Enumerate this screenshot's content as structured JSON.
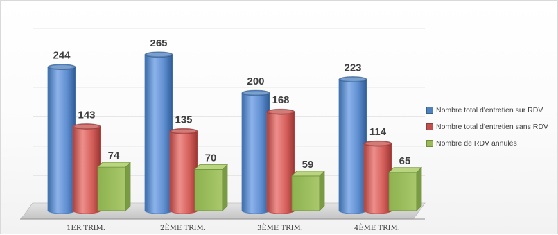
{
  "chart_data": {
    "type": "bar",
    "categories": [
      "1ER TRIM.",
      "2ÈME TRIM.",
      "3ÈME TRIM.",
      "4ÈME TRIM."
    ],
    "series": [
      {
        "name": "Nombre total d'entretien sur RDV",
        "values": [
          244,
          265,
          200,
          223
        ],
        "color": "#4f81bd"
      },
      {
        "name": "Nombre total d'entretien sans RDV",
        "values": [
          143,
          135,
          168,
          114
        ],
        "color": "#c0504d"
      },
      {
        "name": "Nombre de RDV annulés",
        "values": [
          74,
          70,
          59,
          65
        ],
        "color": "#9bbb59"
      }
    ],
    "shapes": [
      "cylinder",
      "cylinder",
      "box"
    ],
    "ylim": [
      0,
      300
    ],
    "grid": true,
    "legend_position": "right"
  }
}
